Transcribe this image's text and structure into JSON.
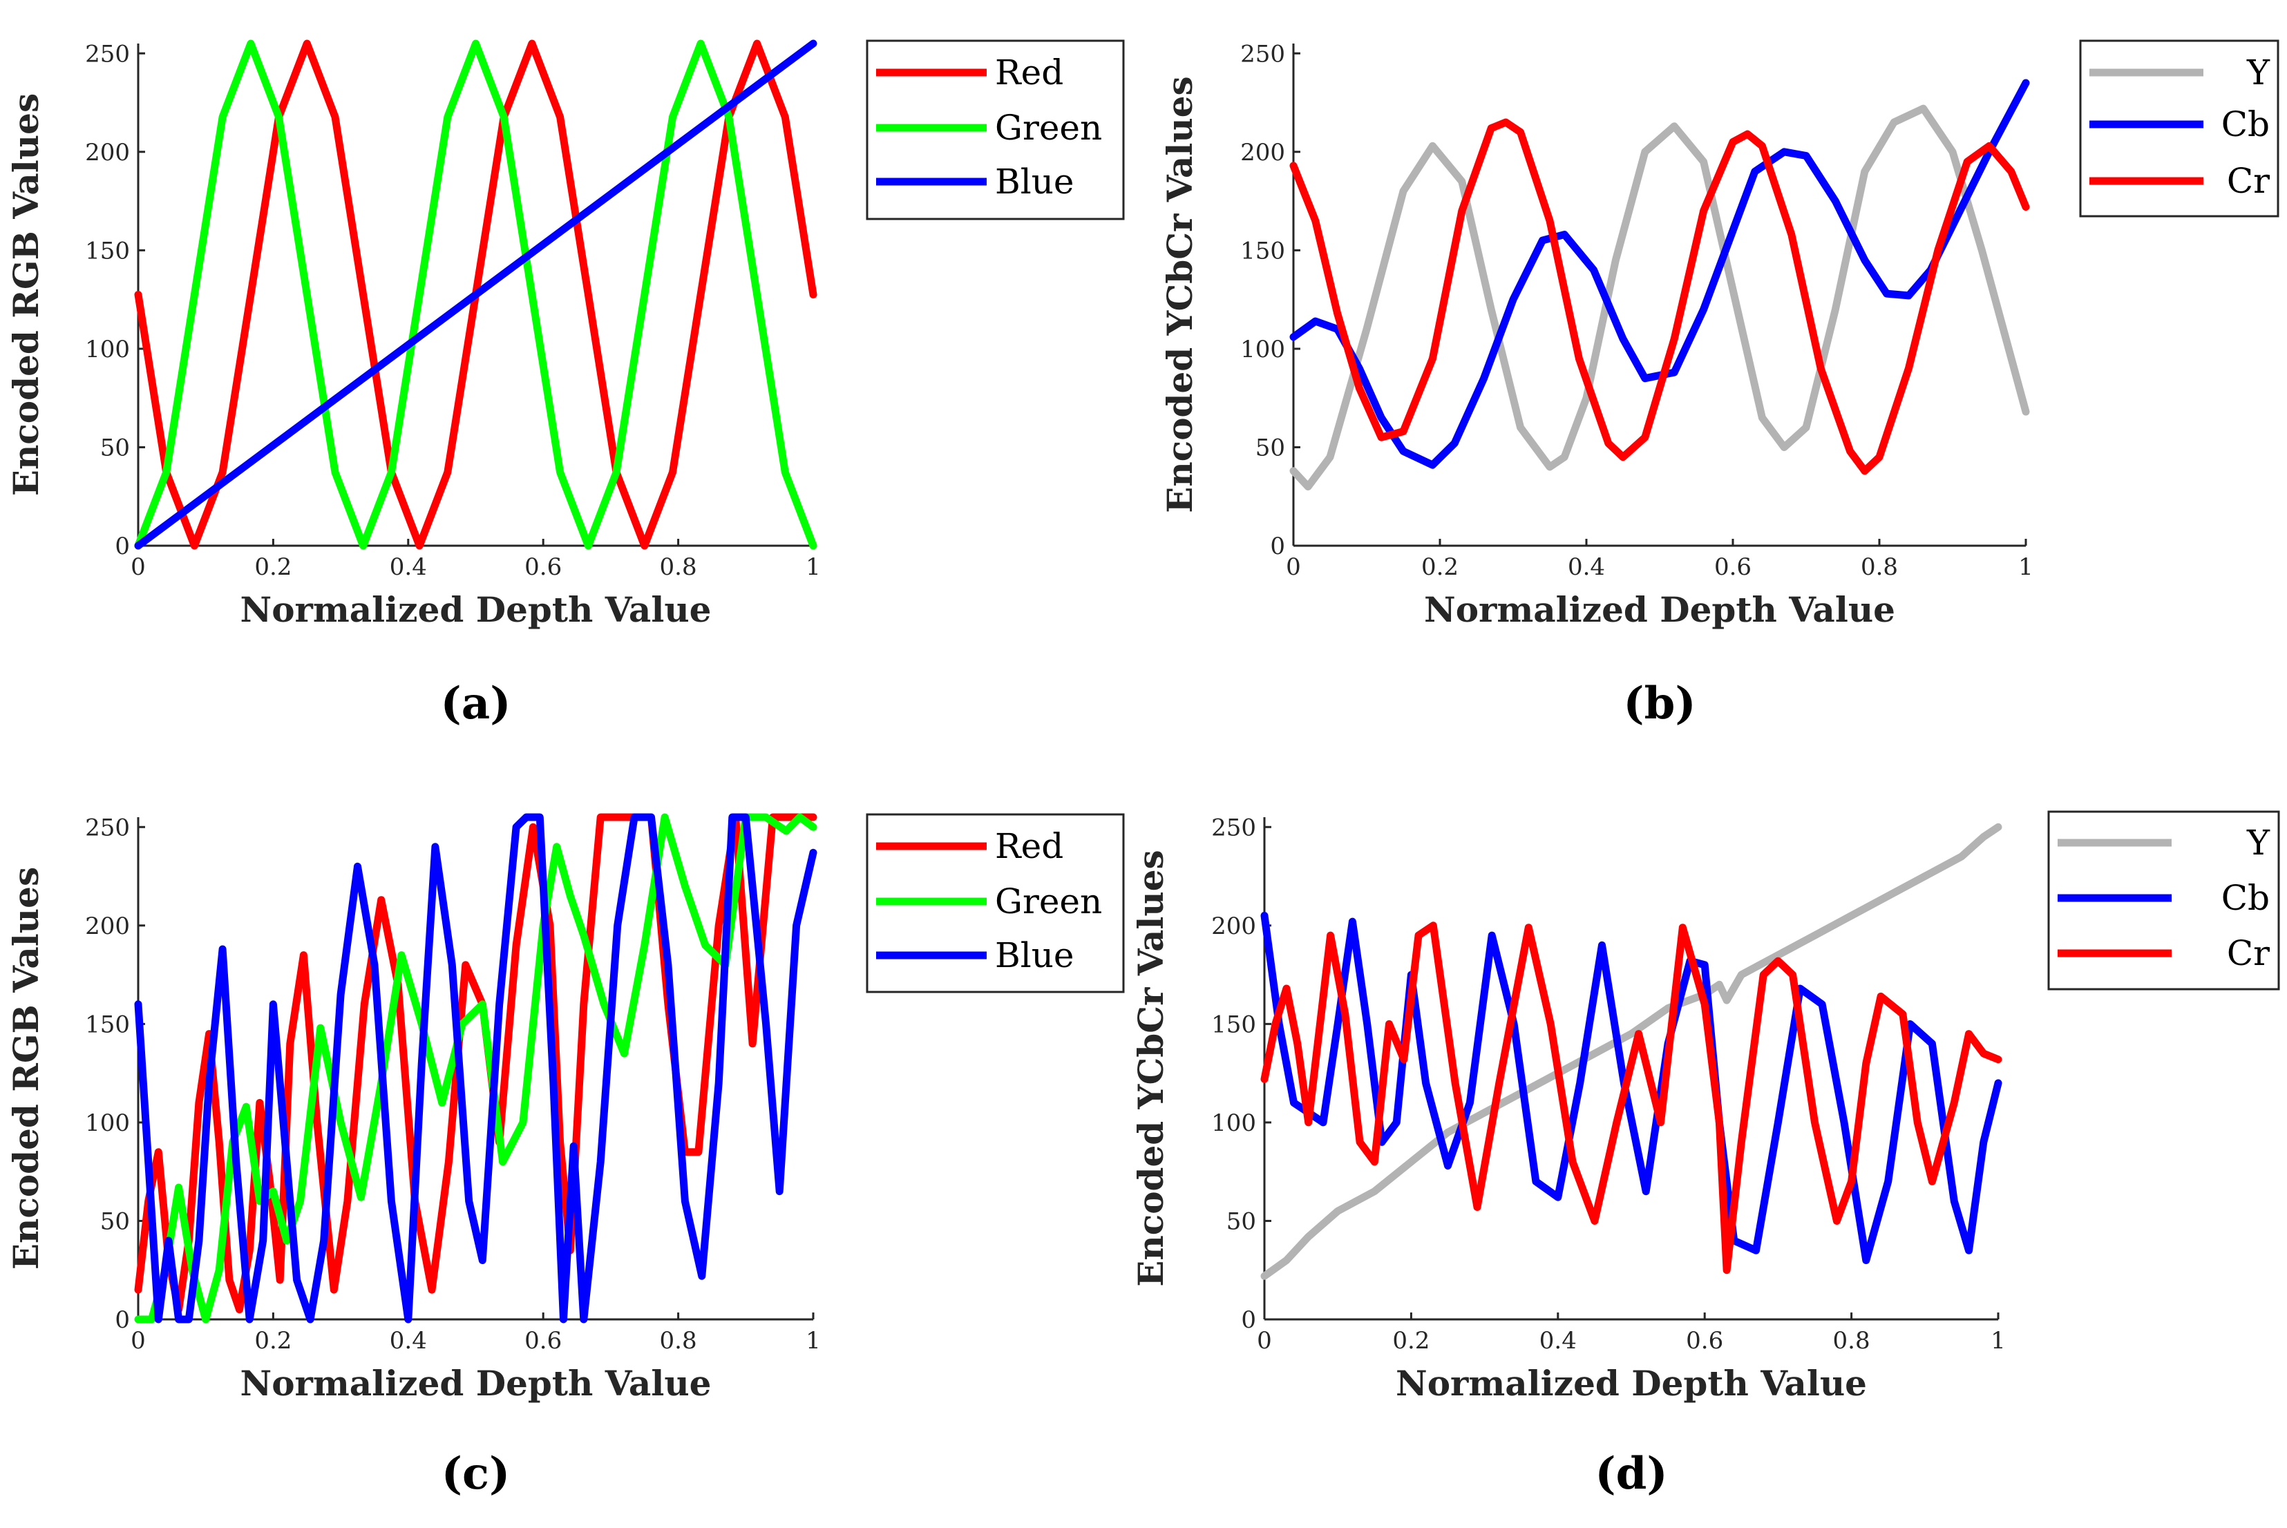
{
  "colors": {
    "red": "#ff0000",
    "green": "#00ff00",
    "blue": "#0000ff",
    "gray": "#b3b3b3"
  },
  "chart_data": [
    {
      "panel_label": "(a)",
      "type": "line",
      "xlabel": "Normalized Depth Value",
      "ylabel": "Encoded RGB Values",
      "xlim": [
        0,
        1
      ],
      "ylim": [
        0,
        255
      ],
      "xticks": [
        0,
        0.2,
        0.4,
        0.6,
        0.8,
        1
      ],
      "xtick_labels": [
        "0",
        "0.2",
        "0.4",
        "0.6",
        "0.8",
        "1"
      ],
      "yticks": [
        0,
        50,
        100,
        150,
        200,
        250
      ],
      "ytick_labels": [
        "0",
        "50",
        "100",
        "150",
        "200",
        "250"
      ],
      "legend_position": "outside-right-top",
      "series": [
        {
          "name": "Red",
          "color": "red",
          "x": [
            0,
            0.0417,
            0.0833,
            0.125,
            0.1667,
            0.2083,
            0.25,
            0.2917,
            0.3333,
            0.375,
            0.4167,
            0.4583,
            0.5,
            0.5417,
            0.5833,
            0.625,
            0.6667,
            0.7083,
            0.75,
            0.7917,
            0.8333,
            0.875,
            0.9167,
            0.9583,
            1
          ],
          "values": [
            127.5,
            37.3,
            0,
            37.3,
            127.5,
            217.7,
            255,
            217.7,
            127.5,
            37.3,
            0,
            37.3,
            127.5,
            217.7,
            255,
            217.7,
            127.5,
            37.3,
            0,
            37.3,
            127.5,
            217.7,
            255,
            217.7,
            127.5
          ]
        },
        {
          "name": "Green",
          "color": "green",
          "x": [
            0,
            0.0417,
            0.0833,
            0.125,
            0.1667,
            0.2083,
            0.25,
            0.2917,
            0.3333,
            0.375,
            0.4167,
            0.4583,
            0.5,
            0.5417,
            0.5833,
            0.625,
            0.6667,
            0.7083,
            0.75,
            0.7917,
            0.8333,
            0.875,
            0.9167,
            0.9583,
            1
          ],
          "values": [
            0,
            37.3,
            127.5,
            217.7,
            255,
            217.7,
            127.5,
            37.3,
            0,
            37.3,
            127.5,
            217.7,
            255,
            217.7,
            127.5,
            37.3,
            0,
            37.3,
            127.5,
            217.7,
            255,
            217.7,
            127.5,
            37.3,
            0
          ]
        },
        {
          "name": "Blue",
          "color": "blue",
          "x": [
            0,
            1
          ],
          "values": [
            0,
            255
          ]
        }
      ]
    },
    {
      "panel_label": "(b)",
      "type": "line",
      "xlabel": "Normalized Depth Value",
      "ylabel": "Encoded YCbCr Values",
      "xlim": [
        0,
        1
      ],
      "ylim": [
        0,
        255
      ],
      "xticks": [
        0,
        0.2,
        0.4,
        0.6,
        0.8,
        1
      ],
      "xtick_labels": [
        "0",
        "0.2",
        "0.4",
        "0.6",
        "0.8",
        "1"
      ],
      "yticks": [
        0,
        50,
        100,
        150,
        200,
        250
      ],
      "ytick_labels": [
        "0",
        "50",
        "100",
        "150",
        "200",
        "250"
      ],
      "legend_position": "top-right",
      "series": [
        {
          "name": "Y",
          "color": "gray",
          "x": [
            0,
            0.02,
            0.05,
            0.1,
            0.15,
            0.19,
            0.23,
            0.27,
            0.31,
            0.35,
            0.37,
            0.4,
            0.44,
            0.48,
            0.52,
            0.56,
            0.6,
            0.64,
            0.67,
            0.7,
            0.74,
            0.78,
            0.82,
            0.86,
            0.9,
            0.94,
            1
          ],
          "values": [
            38,
            30,
            45,
            110,
            180,
            203,
            185,
            120,
            60,
            40,
            45,
            75,
            145,
            200,
            213,
            195,
            130,
            65,
            50,
            60,
            120,
            190,
            215,
            222,
            200,
            150,
            68
          ]
        },
        {
          "name": "Cb",
          "color": "blue",
          "x": [
            0,
            0.03,
            0.06,
            0.09,
            0.12,
            0.15,
            0.19,
            0.22,
            0.26,
            0.3,
            0.34,
            0.37,
            0.41,
            0.45,
            0.48,
            0.52,
            0.56,
            0.6,
            0.63,
            0.67,
            0.7,
            0.74,
            0.78,
            0.81,
            0.84,
            0.87,
            0.91,
            0.95,
            1
          ],
          "values": [
            106,
            114,
            110,
            90,
            65,
            48,
            41,
            52,
            85,
            125,
            155,
            158,
            140,
            105,
            85,
            88,
            120,
            160,
            190,
            200,
            198,
            175,
            145,
            128,
            127,
            140,
            170,
            200,
            235
          ]
        },
        {
          "name": "Cr",
          "color": "red",
          "x": [
            0,
            0.03,
            0.06,
            0.09,
            0.12,
            0.15,
            0.19,
            0.23,
            0.27,
            0.29,
            0.31,
            0.35,
            0.39,
            0.43,
            0.45,
            0.48,
            0.52,
            0.56,
            0.6,
            0.62,
            0.64,
            0.68,
            0.72,
            0.76,
            0.78,
            0.8,
            0.84,
            0.88,
            0.92,
            0.95,
            0.98,
            1
          ],
          "values": [
            193,
            165,
            118,
            80,
            55,
            58,
            95,
            170,
            212,
            215,
            210,
            165,
            95,
            52,
            45,
            55,
            105,
            170,
            205,
            209,
            203,
            158,
            90,
            48,
            38,
            45,
            90,
            150,
            195,
            203,
            190,
            172
          ]
        }
      ]
    },
    {
      "panel_label": "(c)",
      "type": "line",
      "xlabel": "Normalized Depth Value",
      "ylabel": "Encoded RGB Values",
      "xlim": [
        0,
        1
      ],
      "ylim": [
        0,
        255
      ],
      "xticks": [
        0,
        0.2,
        0.4,
        0.6,
        0.8,
        1
      ],
      "xtick_labels": [
        "0",
        "0.2",
        "0.4",
        "0.6",
        "0.8",
        "1"
      ],
      "yticks": [
        0,
        50,
        100,
        150,
        200,
        250
      ],
      "ytick_labels": [
        "0",
        "50",
        "100",
        "150",
        "200",
        "250"
      ],
      "legend_position": "outside-right-top",
      "series": [
        {
          "name": "Red",
          "color": "red",
          "x": [
            0,
            0.015,
            0.03,
            0.045,
            0.06,
            0.075,
            0.09,
            0.105,
            0.12,
            0.135,
            0.15,
            0.165,
            0.18,
            0.195,
            0.21,
            0.225,
            0.245,
            0.265,
            0.29,
            0.31,
            0.335,
            0.36,
            0.385,
            0.41,
            0.435,
            0.46,
            0.485,
            0.51,
            0.535,
            0.56,
            0.585,
            0.61,
            0.625,
            0.64,
            0.66,
            0.685,
            0.71,
            0.735,
            0.76,
            0.785,
            0.81,
            0.83,
            0.86,
            0.885,
            0.91,
            0.94,
            0.97,
            1
          ],
          "values": [
            15,
            60,
            85,
            30,
            5,
            40,
            110,
            145,
            90,
            20,
            5,
            35,
            110,
            70,
            20,
            140,
            185,
            100,
            15,
            60,
            160,
            213,
            170,
            60,
            15,
            80,
            180,
            160,
            90,
            190,
            250,
            200,
            90,
            35,
            160,
            255,
            255,
            255,
            255,
            160,
            85,
            85,
            200,
            255,
            140,
            255,
            255,
            255
          ]
        },
        {
          "name": "Green",
          "color": "green",
          "x": [
            0,
            0.02,
            0.04,
            0.06,
            0.08,
            0.1,
            0.12,
            0.14,
            0.16,
            0.18,
            0.2,
            0.22,
            0.24,
            0.27,
            0.3,
            0.33,
            0.36,
            0.39,
            0.42,
            0.45,
            0.48,
            0.51,
            0.54,
            0.57,
            0.6,
            0.62,
            0.64,
            0.66,
            0.69,
            0.72,
            0.75,
            0.78,
            0.81,
            0.84,
            0.87,
            0.9,
            0.93,
            0.96,
            0.98,
            1
          ],
          "values": [
            0,
            0,
            25,
            67,
            25,
            0,
            25,
            90,
            108,
            60,
            65,
            40,
            60,
            148,
            100,
            62,
            120,
            185,
            150,
            110,
            150,
            160,
            80,
            100,
            200,
            240,
            215,
            195,
            160,
            135,
            190,
            255,
            220,
            190,
            180,
            255,
            255,
            248,
            255,
            250
          ]
        },
        {
          "name": "Blue",
          "color": "blue",
          "x": [
            0,
            0.015,
            0.03,
            0.045,
            0.06,
            0.075,
            0.09,
            0.105,
            0.125,
            0.145,
            0.165,
            0.185,
            0.2,
            0.215,
            0.235,
            0.255,
            0.275,
            0.3,
            0.325,
            0.35,
            0.375,
            0.4,
            0.42,
            0.44,
            0.465,
            0.49,
            0.51,
            0.535,
            0.56,
            0.575,
            0.595,
            0.615,
            0.63,
            0.645,
            0.66,
            0.685,
            0.71,
            0.735,
            0.76,
            0.785,
            0.81,
            0.835,
            0.86,
            0.88,
            0.9,
            0.93,
            0.95,
            0.975,
            1
          ],
          "values": [
            160,
            80,
            0,
            40,
            0,
            0,
            40,
            120,
            188,
            80,
            0,
            40,
            160,
            100,
            20,
            0,
            40,
            165,
            230,
            180,
            60,
            0,
            130,
            240,
            180,
            60,
            30,
            160,
            250,
            255,
            255,
            120,
            0,
            88,
            0,
            80,
            200,
            255,
            255,
            180,
            60,
            22,
            120,
            255,
            255,
            150,
            65,
            200,
            237
          ]
        }
      ]
    },
    {
      "panel_label": "(d)",
      "type": "line",
      "xlabel": "Normalized Depth Value",
      "ylabel": "Encoded YCbCr Values",
      "xlim": [
        0,
        1
      ],
      "ylim": [
        0,
        255
      ],
      "xticks": [
        0,
        0.2,
        0.4,
        0.6,
        0.8,
        1
      ],
      "xtick_labels": [
        "0",
        "0.2",
        "0.4",
        "0.6",
        "0.8",
        "1"
      ],
      "yticks": [
        0,
        50,
        100,
        150,
        200,
        250
      ],
      "ytick_labels": [
        "0",
        "50",
        "100",
        "150",
        "200",
        "250"
      ],
      "legend_position": "top-right",
      "series": [
        {
          "name": "Y",
          "color": "gray",
          "x": [
            0,
            0.03,
            0.06,
            0.1,
            0.15,
            0.2,
            0.25,
            0.3,
            0.35,
            0.4,
            0.45,
            0.5,
            0.55,
            0.6,
            0.62,
            0.63,
            0.65,
            0.7,
            0.75,
            0.8,
            0.85,
            0.9,
            0.95,
            0.98,
            1
          ],
          "values": [
            22,
            30,
            42,
            55,
            65,
            80,
            95,
            105,
            115,
            125,
            135,
            145,
            158,
            165,
            170,
            162,
            175,
            185,
            195,
            205,
            215,
            225,
            235,
            245,
            250
          ]
        },
        {
          "name": "Cb",
          "color": "blue",
          "x": [
            0,
            0.02,
            0.04,
            0.06,
            0.08,
            0.1,
            0.12,
            0.14,
            0.16,
            0.18,
            0.2,
            0.22,
            0.25,
            0.28,
            0.31,
            0.34,
            0.37,
            0.4,
            0.43,
            0.46,
            0.49,
            0.52,
            0.55,
            0.58,
            0.6,
            0.62,
            0.64,
            0.67,
            0.7,
            0.73,
            0.76,
            0.79,
            0.82,
            0.85,
            0.88,
            0.91,
            0.94,
            0.96,
            0.98,
            1
          ],
          "values": [
            205,
            150,
            110,
            105,
            100,
            150,
            202,
            150,
            90,
            100,
            175,
            120,
            78,
            110,
            195,
            150,
            70,
            62,
            120,
            190,
            120,
            65,
            140,
            182,
            180,
            100,
            40,
            35,
            100,
            168,
            160,
            100,
            30,
            70,
            150,
            140,
            60,
            35,
            90,
            120
          ]
        },
        {
          "name": "Cr",
          "color": "red",
          "x": [
            0,
            0.015,
            0.03,
            0.045,
            0.06,
            0.09,
            0.11,
            0.13,
            0.15,
            0.17,
            0.19,
            0.21,
            0.23,
            0.26,
            0.29,
            0.32,
            0.36,
            0.39,
            0.42,
            0.45,
            0.48,
            0.51,
            0.54,
            0.57,
            0.6,
            0.62,
            0.63,
            0.65,
            0.68,
            0.7,
            0.72,
            0.75,
            0.78,
            0.8,
            0.82,
            0.84,
            0.87,
            0.89,
            0.91,
            0.94,
            0.96,
            0.98,
            1
          ],
          "values": [
            122,
            150,
            168,
            140,
            100,
            195,
            155,
            90,
            80,
            150,
            132,
            195,
            200,
            120,
            57,
            120,
            199,
            150,
            80,
            50,
            100,
            145,
            100,
            199,
            160,
            100,
            25,
            90,
            175,
            182,
            175,
            100,
            50,
            70,
            130,
            164,
            155,
            100,
            70,
            110,
            145,
            135,
            132
          ]
        }
      ]
    }
  ]
}
